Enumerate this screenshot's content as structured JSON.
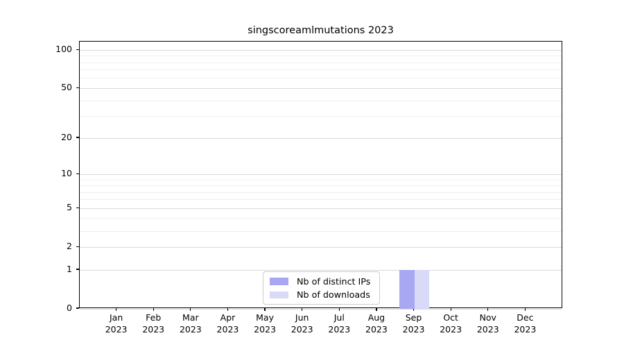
{
  "title": "singscoreamlmutations 2023",
  "chart_data": {
    "type": "bar",
    "title": "singscoreamlmutations 2023",
    "categories": [
      "Jan 2023",
      "Feb 2023",
      "Mar 2023",
      "Apr 2023",
      "May 2023",
      "Jun 2023",
      "Jul 2023",
      "Aug 2023",
      "Sep 2023",
      "Oct 2023",
      "Nov 2023",
      "Dec 2023"
    ],
    "months": [
      "Jan",
      "Feb",
      "Mar",
      "Apr",
      "May",
      "Jun",
      "Jul",
      "Aug",
      "Sep",
      "Oct",
      "Nov",
      "Dec"
    ],
    "year": "2023",
    "series": [
      {
        "name": "Nb of distinct IPs",
        "color": "#a8a8f2",
        "values": [
          0,
          0,
          0,
          0,
          0,
          0,
          0,
          0,
          1,
          0,
          0,
          0
        ]
      },
      {
        "name": "Nb of downloads",
        "color": "#d9d9f8",
        "values": [
          0,
          0,
          0,
          0,
          0,
          0,
          0,
          0,
          1,
          0,
          0,
          0
        ]
      }
    ],
    "xlabel": "",
    "ylabel": "",
    "y_scale": "log10(1+y)",
    "y_major_ticks": [
      0,
      1,
      2,
      5,
      10,
      20,
      50,
      100
    ],
    "y_minor_ticks": [
      3,
      4,
      6,
      7,
      8,
      9,
      30,
      40,
      60,
      70,
      80,
      90
    ],
    "ylim": [
      0,
      116
    ],
    "grid": "horizontal, major and minor",
    "legend_position": "lower center"
  },
  "colors": {
    "bar_distinct_ips": "#a8a8f2",
    "bar_downloads": "#d9d9f8",
    "major_grid": "#d9d9d9",
    "minor_grid": "#efefef",
    "axis": "#000000",
    "legend_border": "#cccccc",
    "background": "#ffffff"
  }
}
